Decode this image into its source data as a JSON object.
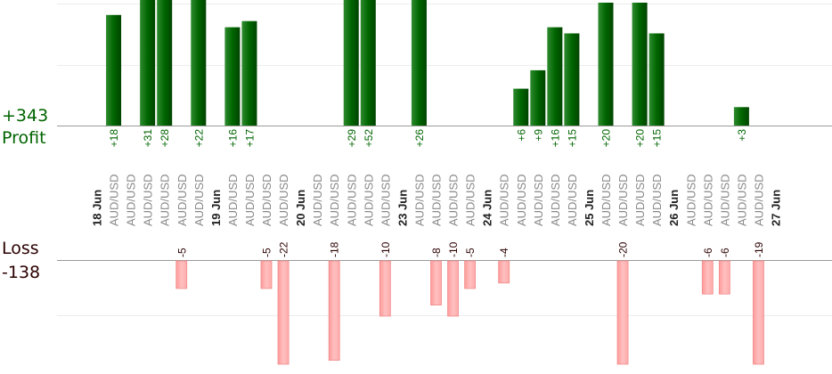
{
  "summary": {
    "profit_total": "+343",
    "profit_label": "Profit",
    "loss_label": "Loss",
    "loss_total": "-138"
  },
  "colors": {
    "profit_bar": "#006600",
    "loss_bar": "#ffb3b3",
    "profit_text": "#006400",
    "loss_text": "#2b0000",
    "date_text": "#222222",
    "pair_text": "#888888"
  },
  "chart_data": {
    "type": "bar",
    "scale_per_unit": "pips",
    "columns": [
      {
        "date": "18 Jun"
      },
      {
        "pair": "AUD/USD",
        "value": 18
      },
      {
        "pair": "AUD/USD"
      },
      {
        "pair": "AUD/USD",
        "value": 31
      },
      {
        "pair": "AUD/USD",
        "value": 28
      },
      {
        "pair": "AUD/USD",
        "value": -5
      },
      {
        "pair": "AUD/USD",
        "value": 22
      },
      {
        "date": "19 Jun"
      },
      {
        "pair": "AUD/USD",
        "value": 16
      },
      {
        "pair": "AUD/USD",
        "value": 17
      },
      {
        "pair": "AUD/USD",
        "value": -5
      },
      {
        "pair": "AUD/USD",
        "value": -22
      },
      {
        "date": "20 Jun"
      },
      {
        "pair": "AUD/USD"
      },
      {
        "pair": "AUD/USD",
        "value": -18
      },
      {
        "pair": "AUD/USD",
        "value": 29
      },
      {
        "pair": "AUD/USD",
        "value": 52
      },
      {
        "pair": "AUD/USD",
        "value": -10
      },
      {
        "date": "23 Jun"
      },
      {
        "pair": "AUD/USD",
        "value": 26
      },
      {
        "pair": "AUD/USD",
        "value": -8
      },
      {
        "pair": "AUD/USD",
        "value": -10
      },
      {
        "pair": "AUD/USD",
        "value": -5
      },
      {
        "date": "24 Jun"
      },
      {
        "pair": "AUD/USD",
        "value": -4
      },
      {
        "pair": "AUD/USD",
        "value": 6
      },
      {
        "pair": "AUD/USD",
        "value": 9
      },
      {
        "pair": "AUD/USD",
        "value": 16
      },
      {
        "pair": "AUD/USD",
        "value": 15
      },
      {
        "date": "25 Jun"
      },
      {
        "pair": "AUD/USD",
        "value": 20
      },
      {
        "pair": "AUD/USD",
        "value": -20
      },
      {
        "pair": "AUD/USD",
        "value": 20
      },
      {
        "pair": "AUD/USD",
        "value": 15
      },
      {
        "date": "26 Jun"
      },
      {
        "pair": "AUD/USD"
      },
      {
        "pair": "AUD/USD",
        "value": -6
      },
      {
        "pair": "AUD/USD",
        "value": -6
      },
      {
        "pair": "AUD/USD",
        "value": 3
      },
      {
        "pair": "AUD/USD",
        "value": -19
      },
      {
        "date": "27 Jun"
      }
    ]
  }
}
